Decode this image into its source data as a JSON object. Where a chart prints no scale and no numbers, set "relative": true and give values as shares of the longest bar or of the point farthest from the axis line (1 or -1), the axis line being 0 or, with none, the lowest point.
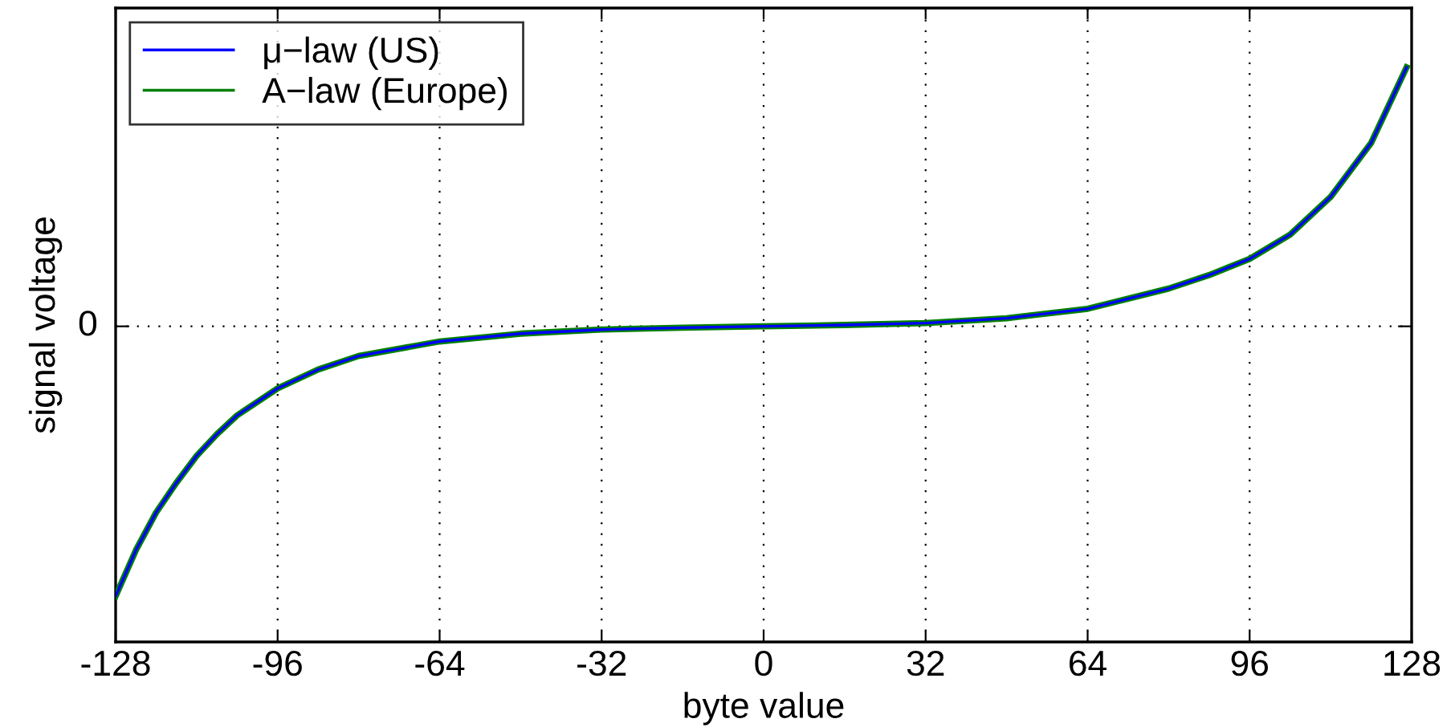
{
  "chart_data": {
    "type": "line",
    "relative": true,
    "xlabel": "byte value",
    "ylabel": "signal voltage",
    "x": [
      -128,
      -124,
      -120,
      -116,
      -112,
      -108,
      -104,
      -96,
      -88,
      -80,
      -64,
      -48,
      -32,
      -16,
      0,
      16,
      32,
      48,
      64,
      80,
      88,
      96,
      104,
      112,
      120,
      127
    ],
    "series": [
      {
        "name": "μ−law (US)",
        "color": "#0000ff",
        "values": [
          -1,
          -0.83,
          -0.69,
          -0.58,
          -0.48,
          -0.4,
          -0.33,
          -0.23,
          -0.16,
          -0.11,
          -0.056,
          -0.027,
          -0.012,
          -0.005,
          0,
          0.005,
          0.012,
          0.03,
          0.065,
          0.14,
          0.19,
          0.25,
          0.34,
          0.48,
          0.68,
          0.96
        ]
      },
      {
        "name": "A−law (Europe)",
        "color": "#008000",
        "values": [
          -1,
          -0.83,
          -0.69,
          -0.58,
          -0.48,
          -0.4,
          -0.33,
          -0.23,
          -0.16,
          -0.11,
          -0.056,
          -0.027,
          -0.012,
          -0.005,
          0,
          0.005,
          0.012,
          0.03,
          0.065,
          0.14,
          0.19,
          0.25,
          0.34,
          0.48,
          0.68,
          0.96
        ]
      }
    ],
    "xlim": [
      -128,
      128
    ],
    "xticks": [
      -128,
      -96,
      -64,
      -32,
      0,
      32,
      64,
      96,
      128
    ],
    "grid": "x",
    "legend": "top left",
    "ref_lines": [
      {
        "axis": "y",
        "value": 0,
        "label": "0",
        "line_style": "dotted",
        "color": "#000000"
      }
    ]
  }
}
